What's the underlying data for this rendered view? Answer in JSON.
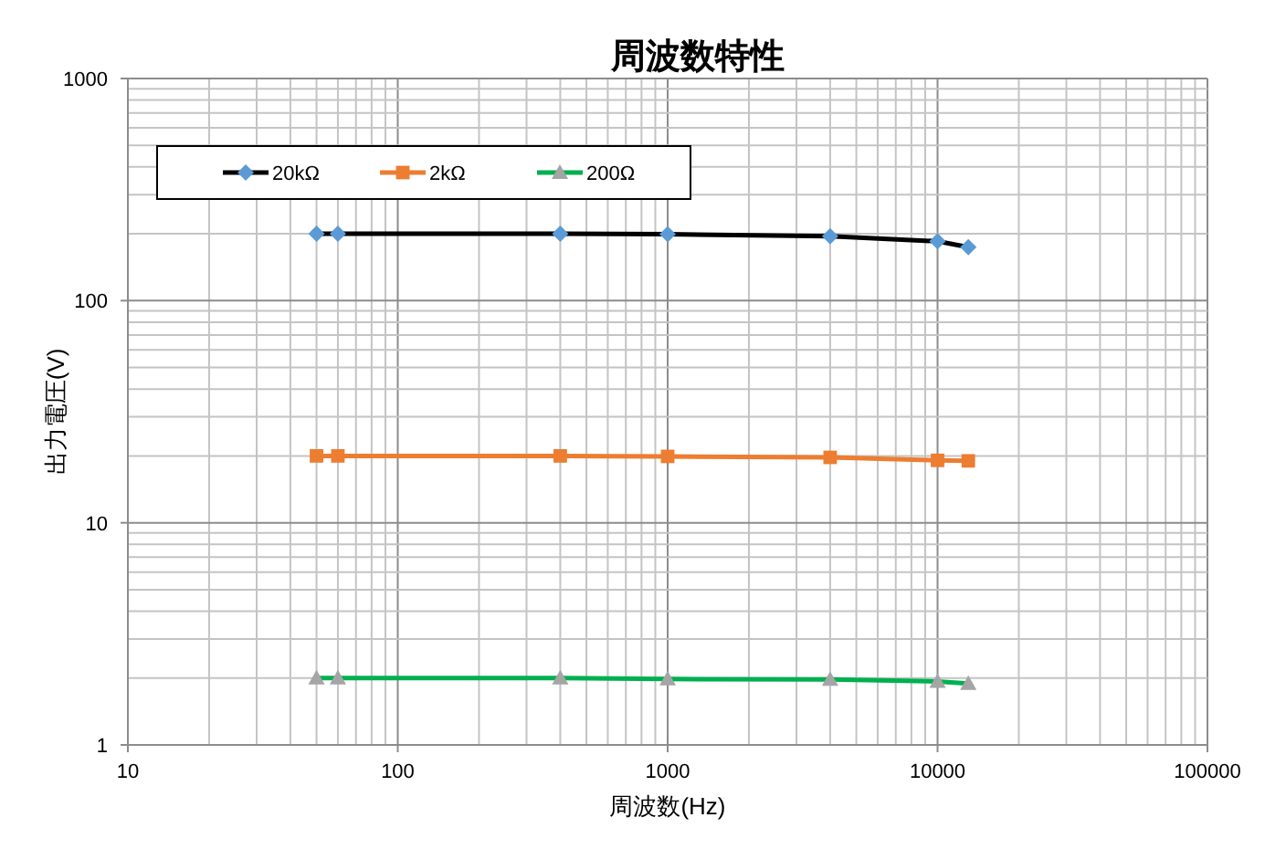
{
  "chart_data": {
    "type": "line",
    "title": "周波数特性",
    "xlabel": "周波数(Hz)",
    "ylabel": "出力電圧(V)",
    "x": [
      50,
      60,
      400,
      1000,
      4000,
      10000,
      13000
    ],
    "series": [
      {
        "name": "20kΩ",
        "color": "#000000",
        "colors": [
          "#5b9bd5",
          "#5b9bd5",
          "#5b9bd5",
          "#5b9bd5",
          "#5b9bd5",
          "#5b9bd5",
          "#5b9bd5"
        ],
        "marker": "diamond",
        "values": [
          200,
          200,
          200,
          199,
          195,
          185,
          174
        ]
      },
      {
        "name": "2kΩ",
        "color": "#ed7d31",
        "colors": [
          "#ed7d31",
          "#ed7d31",
          "#ed7d31",
          "#ed7d31",
          "#ed7d31",
          "#ed7d31",
          "#ed7d31"
        ],
        "marker": "square",
        "values": [
          20,
          20,
          20,
          19.9,
          19.7,
          19.1,
          19.0
        ]
      },
      {
        "name": "200Ω",
        "color": "#00b050",
        "colors": [
          "#a5a5a5",
          "#a5a5a5",
          "#a5a5a5",
          "#a5a5a5",
          "#a5a5a5",
          "#a5a5a5",
          "#a5a5a5"
        ],
        "marker": "triangle",
        "values": [
          2.0,
          2.0,
          2.0,
          1.98,
          1.97,
          1.93,
          1.89
        ]
      }
    ],
    "log": "xy",
    "xlim": [
      10,
      100000
    ],
    "ylim": [
      1,
      1000
    ],
    "xticks": [
      10,
      100,
      1000,
      10000,
      100000
    ],
    "yticks": [
      1,
      10,
      100,
      1000
    ],
    "grid": true,
    "legend": "top left",
    "line_style": "solid"
  }
}
